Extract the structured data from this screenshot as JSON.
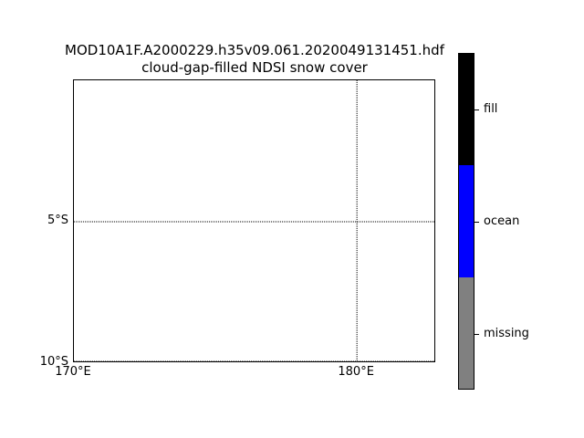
{
  "chart_data": {
    "type": "heatmap",
    "title": "MOD10A1F.A2000229.h35v09.061.2020049131451.hdf",
    "subtitle": "cloud-gap-filled NDSI snow cover",
    "xlabel": "",
    "ylabel": "",
    "x_ticks": [
      {
        "value": 170,
        "label": "170°E"
      },
      {
        "value": 180,
        "label": "180°E"
      }
    ],
    "y_ticks": [
      {
        "value": -5,
        "label": "5°S"
      },
      {
        "value": -10,
        "label": "10°S"
      }
    ],
    "xlim": [
      170,
      182.8
    ],
    "ylim": [
      -10,
      0
    ],
    "grid": true,
    "colorbar": [
      {
        "label": "missing",
        "color": "#808080"
      },
      {
        "label": "ocean",
        "color": "#0000ff"
      },
      {
        "label": "fill",
        "color": "#000000"
      }
    ]
  }
}
